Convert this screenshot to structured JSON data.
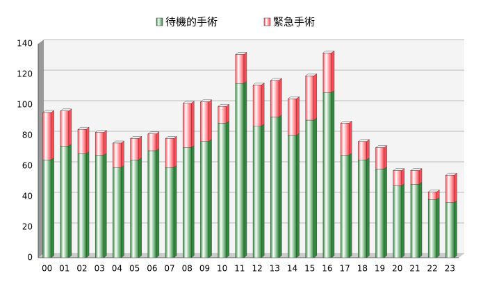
{
  "chart_data": {
    "type": "stacked-bar",
    "categories": [
      "00",
      "01",
      "02",
      "03",
      "04",
      "05",
      "06",
      "07",
      "08",
      "09",
      "10",
      "11",
      "12",
      "13",
      "14",
      "15",
      "16",
      "17",
      "18",
      "19",
      "20",
      "21",
      "22",
      "23"
    ],
    "series": [
      {
        "name": "待機的手術",
        "color": "#2f8a3c",
        "values": [
          64,
          73,
          68,
          67,
          59,
          64,
          70,
          59,
          72,
          76,
          88,
          114,
          86,
          92,
          80,
          90,
          108,
          67,
          64,
          58,
          47,
          48,
          38,
          36
        ]
      },
      {
        "name": "緊急手術",
        "color": "#ff4a55",
        "values": [
          31,
          23,
          16,
          15,
          16,
          14,
          11,
          19,
          29,
          26,
          11,
          19,
          27,
          24,
          24,
          29,
          26,
          21,
          12,
          14,
          10,
          9,
          5,
          18
        ]
      }
    ],
    "ylim": [
      0,
      140
    ],
    "yticks": [
      0,
      20,
      40,
      60,
      80,
      100,
      120,
      140
    ],
    "grid": true,
    "legend": "top"
  }
}
